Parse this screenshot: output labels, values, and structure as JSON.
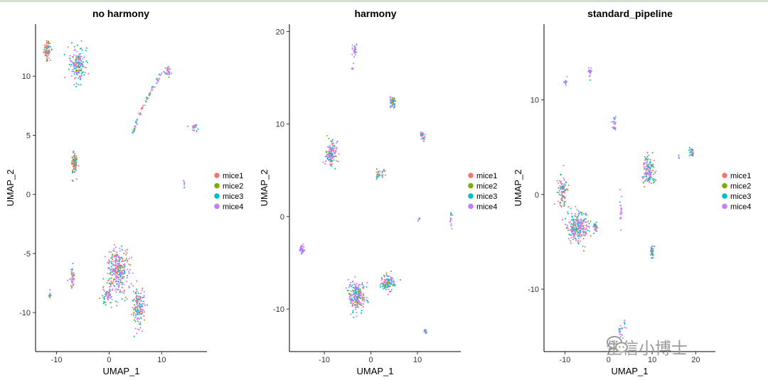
{
  "colors": {
    "mice1": "#F8766D",
    "mice2": "#7CAE00",
    "mice3": "#00BFC4",
    "mice4": "#C77CFF"
  },
  "legend_labels": [
    "mice1",
    "mice2",
    "mice3",
    "mice4"
  ],
  "watermark": {
    "text": "生信小博士",
    "icon": "wechat-logo-icon"
  },
  "chart_data": [
    {
      "type": "scatter",
      "title": "no harmony",
      "xlabel": "UMAP_1",
      "ylabel": "UMAP_2",
      "xlim": [
        -14,
        18.6
      ],
      "ylim": [
        -13.3,
        14.4
      ],
      "xticks": [
        -10,
        0,
        10
      ],
      "yticks": [
        10,
        5,
        0,
        -5,
        -10
      ],
      "series": [
        "mice1",
        "mice2",
        "mice3",
        "mice4"
      ],
      "clusters": [
        {
          "x": -11.8,
          "y": 12.2,
          "sx": 0.6,
          "sy": 0.7,
          "n": 80,
          "mix": [
            3,
            1,
            2,
            3
          ]
        },
        {
          "x": -6.0,
          "y": 11.0,
          "sx": 1.3,
          "sy": 1.3,
          "n": 170,
          "mix": [
            1,
            1,
            3,
            4
          ]
        },
        {
          "x": -6.7,
          "y": 2.6,
          "sx": 0.5,
          "sy": 0.9,
          "n": 90,
          "mix": [
            4,
            2,
            2,
            1
          ]
        },
        {
          "x": 11.2,
          "y": 10.4,
          "sx": 0.5,
          "sy": 0.4,
          "n": 30,
          "mix": [
            1,
            1,
            1,
            5
          ]
        },
        {
          "x": 16.2,
          "y": 5.6,
          "sx": 0.8,
          "sy": 0.3,
          "n": 20,
          "mix": [
            1,
            1,
            2,
            4
          ]
        },
        {
          "x": -7.0,
          "y": -6.9,
          "sx": 0.4,
          "sy": 0.8,
          "n": 40,
          "mix": [
            1,
            1,
            2,
            4
          ]
        },
        {
          "x": -11.3,
          "y": -8.6,
          "sx": 0.3,
          "sy": 0.3,
          "n": 14,
          "mix": [
            1,
            1,
            3,
            3
          ]
        },
        {
          "x": 1.6,
          "y": -6.4,
          "sx": 1.9,
          "sy": 1.7,
          "n": 300,
          "mix": [
            2,
            1,
            2,
            5
          ]
        },
        {
          "x": -0.4,
          "y": -8.5,
          "sx": 0.8,
          "sy": 0.7,
          "n": 60,
          "mix": [
            1,
            1,
            2,
            3
          ]
        },
        {
          "x": 5.6,
          "y": -9.6,
          "sx": 1.2,
          "sy": 1.5,
          "n": 150,
          "mix": [
            2,
            1,
            3,
            4
          ]
        },
        {
          "x": 14.3,
          "y": 0.8,
          "sx": 0.2,
          "sy": 0.3,
          "n": 6,
          "mix": [
            0,
            0,
            1,
            3
          ]
        }
      ],
      "arcs": [
        {
          "points": [
            [
              4.5,
              5.2
            ],
            [
              6.5,
              8.0
            ],
            [
              10.5,
              10.5
            ]
          ],
          "n": 70,
          "spread": 0.2,
          "mix": [
            1,
            1,
            3,
            4
          ]
        }
      ]
    },
    {
      "type": "scatter",
      "title": "harmony",
      "xlabel": "UMAP_1",
      "ylabel": "UMAP_2",
      "xlim": [
        -17.5,
        19.3
      ],
      "ylim": [
        -14.6,
        20.8
      ],
      "xticks": [
        -10,
        0,
        10
      ],
      "yticks": [
        20,
        10,
        0,
        -10
      ],
      "series": [
        "mice1",
        "mice2",
        "mice3",
        "mice4"
      ],
      "clusters": [
        {
          "x": -3.5,
          "y": 18.0,
          "sx": 0.4,
          "sy": 0.6,
          "n": 30,
          "mix": [
            0,
            0,
            1,
            6
          ]
        },
        {
          "x": -3.9,
          "y": 16.0,
          "sx": 0.2,
          "sy": 0.3,
          "n": 6,
          "mix": [
            0,
            0,
            0,
            3
          ]
        },
        {
          "x": 4.6,
          "y": 12.3,
          "sx": 0.6,
          "sy": 0.6,
          "n": 50,
          "mix": [
            1,
            1,
            3,
            3
          ]
        },
        {
          "x": 11.2,
          "y": 8.7,
          "sx": 0.5,
          "sy": 0.4,
          "n": 30,
          "mix": [
            3,
            1,
            2,
            3
          ]
        },
        {
          "x": -8.6,
          "y": 6.7,
          "sx": 1.0,
          "sy": 1.3,
          "n": 140,
          "mix": [
            2,
            1,
            3,
            4
          ]
        },
        {
          "x": 2.0,
          "y": 4.6,
          "sx": 0.9,
          "sy": 0.5,
          "n": 30,
          "mix": [
            1,
            1,
            3,
            3
          ]
        },
        {
          "x": -14.8,
          "y": -3.6,
          "sx": 0.5,
          "sy": 0.4,
          "n": 40,
          "mix": [
            0,
            0,
            1,
            6
          ]
        },
        {
          "x": -3.0,
          "y": -8.6,
          "sx": 1.6,
          "sy": 1.5,
          "n": 220,
          "mix": [
            2,
            1,
            3,
            5
          ]
        },
        {
          "x": 3.6,
          "y": -7.2,
          "sx": 1.3,
          "sy": 0.8,
          "n": 110,
          "mix": [
            1,
            1,
            3,
            4
          ]
        },
        {
          "x": 11.6,
          "y": -12.4,
          "sx": 0.3,
          "sy": 0.3,
          "n": 15,
          "mix": [
            1,
            0,
            2,
            3
          ]
        },
        {
          "x": 17.2,
          "y": -0.5,
          "sx": 0.2,
          "sy": 1.2,
          "n": 14,
          "mix": [
            0,
            0,
            1,
            4
          ]
        },
        {
          "x": 10.4,
          "y": -0.3,
          "sx": 0.3,
          "sy": 0.2,
          "n": 5,
          "mix": [
            0,
            0,
            1,
            3
          ]
        }
      ],
      "arcs": []
    },
    {
      "type": "scatter",
      "title": "standard_pipeline",
      "xlabel": "UMAP_1",
      "ylabel": "UMAP_2",
      "xlim": [
        -14.8,
        24.5
      ],
      "ylim": [
        -16.6,
        18.0
      ],
      "xticks": [
        -10,
        0,
        10,
        20
      ],
      "yticks": [
        10,
        0,
        -10
      ],
      "series": [
        "mice1",
        "mice2",
        "mice3",
        "mice4"
      ],
      "clusters": [
        {
          "x": -4.2,
          "y": 12.9,
          "sx": 0.3,
          "sy": 0.5,
          "n": 22,
          "mix": [
            0,
            0,
            1,
            6
          ]
        },
        {
          "x": -9.8,
          "y": 11.9,
          "sx": 0.4,
          "sy": 0.3,
          "n": 14,
          "mix": [
            0,
            0,
            1,
            5
          ]
        },
        {
          "x": 1.4,
          "y": 7.5,
          "sx": 0.5,
          "sy": 1.0,
          "n": 22,
          "mix": [
            0,
            0,
            1,
            5
          ]
        },
        {
          "x": -10.5,
          "y": 0.3,
          "sx": 1.0,
          "sy": 1.4,
          "n": 90,
          "mix": [
            2,
            1,
            3,
            3
          ]
        },
        {
          "x": -7.0,
          "y": -3.4,
          "sx": 2.2,
          "sy": 1.5,
          "n": 250,
          "mix": [
            2,
            1,
            3,
            5
          ]
        },
        {
          "x": -3.0,
          "y": -3.5,
          "sx": 0.4,
          "sy": 0.6,
          "n": 30,
          "mix": [
            1,
            1,
            3,
            3
          ]
        },
        {
          "x": 9.2,
          "y": 2.5,
          "sx": 1.3,
          "sy": 1.3,
          "n": 130,
          "mix": [
            2,
            1,
            3,
            3
          ]
        },
        {
          "x": 19.0,
          "y": 4.5,
          "sx": 0.5,
          "sy": 0.5,
          "n": 30,
          "mix": [
            2,
            1,
            3,
            3
          ]
        },
        {
          "x": 10.0,
          "y": -6.1,
          "sx": 0.4,
          "sy": 0.6,
          "n": 40,
          "mix": [
            1,
            1,
            3,
            3
          ]
        },
        {
          "x": 3.0,
          "y": -14.2,
          "sx": 0.9,
          "sy": 0.7,
          "n": 22,
          "mix": [
            0,
            0,
            2,
            4
          ]
        },
        {
          "x": 2.9,
          "y": -1.5,
          "sx": 0.3,
          "sy": 1.5,
          "n": 20,
          "mix": [
            0,
            0,
            1,
            4
          ]
        },
        {
          "x": 16.2,
          "y": 4.0,
          "sx": 0.2,
          "sy": 0.2,
          "n": 4,
          "mix": [
            0,
            0,
            1,
            3
          ]
        }
      ],
      "arcs": []
    }
  ]
}
